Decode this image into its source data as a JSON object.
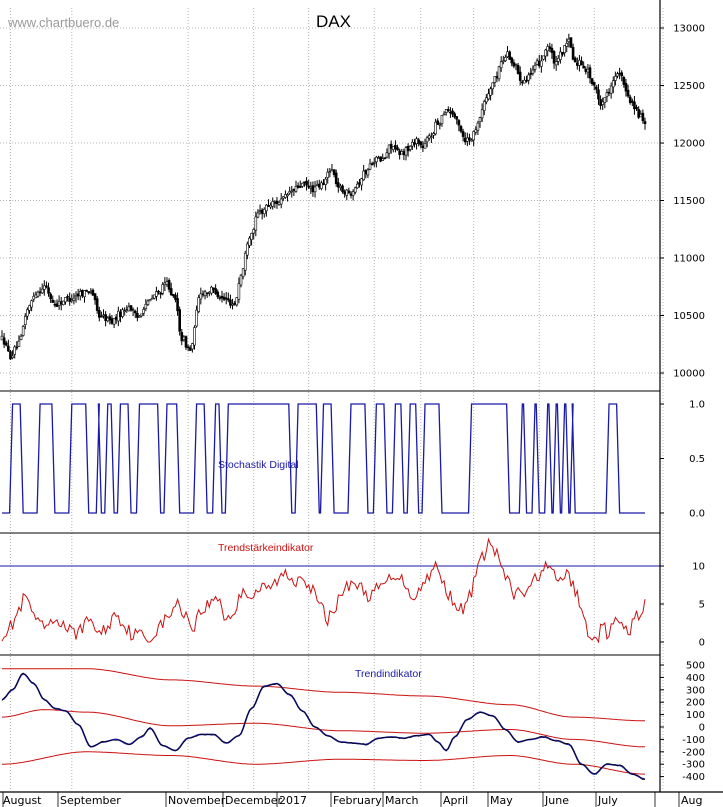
{
  "watermark": "www.chartbuero.de",
  "colors": {
    "grid": "#b4b4b4",
    "price": "#000000",
    "stoch": "#1a1aa8",
    "trend_strength": "#cc1111",
    "trend_ind": "#1a1aa8",
    "trend_band": "#cc1111",
    "trend_black": "#000000",
    "frame": "#000000"
  },
  "chart_data": [
    {
      "type": "candlestick",
      "title": "DAX",
      "ylim": [
        9850,
        13150
      ],
      "yticks": [
        "13000",
        "12500",
        "12000",
        "11500",
        "11000",
        "10500",
        "10000"
      ],
      "months": [
        "August",
        "September",
        "November",
        "December",
        "2017",
        "February",
        "March",
        "April",
        "May",
        "June",
        "July",
        "Aug"
      ],
      "anchors": [
        [
          0,
          10300
        ],
        [
          4,
          10150
        ],
        [
          8,
          10250
        ],
        [
          12,
          10550
        ],
        [
          16,
          10700
        ],
        [
          20,
          10750
        ],
        [
          25,
          10600
        ],
        [
          32,
          10650
        ],
        [
          38,
          10700
        ],
        [
          42,
          10720
        ],
        [
          46,
          10500
        ],
        [
          52,
          10450
        ],
        [
          56,
          10520
        ],
        [
          60,
          10580
        ],
        [
          64,
          10480
        ],
        [
          68,
          10600
        ],
        [
          74,
          10700
        ],
        [
          78,
          10780
        ],
        [
          82,
          10620
        ],
        [
          85,
          10300
        ],
        [
          89,
          10200
        ],
        [
          94,
          10700
        ],
        [
          100,
          10720
        ],
        [
          105,
          10640
        ],
        [
          110,
          10600
        ],
        [
          113,
          10850
        ],
        [
          117,
          11200
        ],
        [
          122,
          11400
        ],
        [
          127,
          11470
        ],
        [
          132,
          11500
        ],
        [
          137,
          11580
        ],
        [
          142,
          11640
        ],
        [
          147,
          11600
        ],
        [
          152,
          11640
        ],
        [
          155,
          11780
        ],
        [
          160,
          11600
        ],
        [
          164,
          11560
        ],
        [
          168,
          11650
        ],
        [
          172,
          11750
        ],
        [
          176,
          11860
        ],
        [
          180,
          11850
        ],
        [
          184,
          11980
        ],
        [
          188,
          11900
        ],
        [
          192,
          11950
        ],
        [
          196,
          12030
        ],
        [
          199,
          11960
        ],
        [
          202,
          12050
        ],
        [
          206,
          12170
        ],
        [
          210,
          12300
        ],
        [
          213,
          12260
        ],
        [
          216,
          12150
        ],
        [
          219,
          12030
        ],
        [
          222,
          12050
        ],
        [
          226,
          12230
        ],
        [
          229,
          12400
        ],
        [
          233,
          12550
        ],
        [
          236,
          12700
        ],
        [
          239,
          12780
        ],
        [
          242,
          12680
        ],
        [
          246,
          12550
        ],
        [
          250,
          12600
        ],
        [
          254,
          12700
        ],
        [
          258,
          12840
        ],
        [
          262,
          12680
        ],
        [
          265,
          12800
        ],
        [
          268,
          12880
        ],
        [
          271,
          12700
        ],
        [
          274,
          12700
        ],
        [
          277,
          12620
        ],
        [
          280,
          12480
        ],
        [
          283,
          12350
        ],
        [
          286,
          12420
        ],
        [
          289,
          12560
        ],
        [
          292,
          12600
        ],
        [
          295,
          12450
        ],
        [
          298,
          12350
        ],
        [
          301,
          12250
        ],
        [
          304,
          12150
        ]
      ],
      "n_bars": 305
    },
    {
      "type": "line",
      "series": [
        {
          "name": "Stochastik Digital"
        }
      ],
      "ylim": [
        0,
        1
      ],
      "yticks": [
        "1.0",
        "0.5",
        "0.0"
      ],
      "segments": [
        [
          1,
          0
        ],
        [
          5,
          1
        ],
        [
          10,
          0
        ],
        [
          18,
          1
        ],
        [
          25,
          0
        ],
        [
          33,
          1
        ],
        [
          41,
          0
        ],
        [
          46,
          1
        ],
        [
          47,
          0
        ],
        [
          50,
          1
        ],
        [
          53,
          0
        ],
        [
          56,
          1
        ],
        [
          61,
          0
        ],
        [
          65,
          1
        ],
        [
          75,
          0
        ],
        [
          78,
          1
        ],
        [
          84,
          0
        ],
        [
          92,
          1
        ],
        [
          97,
          0
        ],
        [
          101,
          1
        ],
        [
          104,
          0
        ],
        [
          107,
          1
        ],
        [
          137,
          0
        ],
        [
          140,
          1
        ],
        [
          150,
          0
        ],
        [
          152,
          1
        ],
        [
          157,
          0
        ],
        [
          165,
          1
        ],
        [
          173,
          0
        ],
        [
          177,
          1
        ],
        [
          182,
          0
        ],
        [
          186,
          1
        ],
        [
          190,
          0
        ],
        [
          193,
          1
        ],
        [
          197,
          0
        ],
        [
          200,
          1
        ],
        [
          208,
          0
        ],
        [
          222,
          1
        ],
        [
          240,
          0
        ],
        [
          246,
          1
        ],
        [
          248,
          0
        ],
        [
          252,
          1
        ],
        [
          254,
          0
        ],
        [
          258,
          1
        ],
        [
          260,
          0
        ],
        [
          262,
          1
        ],
        [
          264,
          0
        ],
        [
          266,
          1
        ],
        [
          268,
          0
        ],
        [
          270,
          1
        ],
        [
          271,
          0
        ],
        [
          287,
          1
        ],
        [
          292,
          0
        ],
        [
          305,
          0
        ]
      ]
    },
    {
      "type": "line",
      "series": [
        {
          "name": "Trendstärkeindikator"
        }
      ],
      "ylim": [
        -1,
        14
      ],
      "yticks": [
        "10",
        "5",
        "0"
      ],
      "reference_line": 10,
      "anchors": [
        [
          0,
          1
        ],
        [
          4,
          2
        ],
        [
          8,
          4
        ],
        [
          11,
          6
        ],
        [
          14,
          4
        ],
        [
          18,
          2
        ],
        [
          22,
          2
        ],
        [
          26,
          3
        ],
        [
          30,
          2
        ],
        [
          34,
          1
        ],
        [
          38,
          2
        ],
        [
          42,
          3
        ],
        [
          46,
          1
        ],
        [
          50,
          2
        ],
        [
          54,
          4
        ],
        [
          58,
          2
        ],
        [
          62,
          1
        ],
        [
          66,
          1
        ],
        [
          70,
          0
        ],
        [
          74,
          2
        ],
        [
          78,
          3
        ],
        [
          82,
          5
        ],
        [
          86,
          4
        ],
        [
          90,
          2
        ],
        [
          94,
          4
        ],
        [
          98,
          5
        ],
        [
          102,
          6
        ],
        [
          106,
          3
        ],
        [
          110,
          4
        ],
        [
          114,
          7
        ],
        [
          118,
          6
        ],
        [
          122,
          7
        ],
        [
          126,
          7
        ],
        [
          130,
          8
        ],
        [
          134,
          9
        ],
        [
          138,
          8
        ],
        [
          142,
          9
        ],
        [
          146,
          7
        ],
        [
          150,
          5
        ],
        [
          154,
          3
        ],
        [
          158,
          5
        ],
        [
          162,
          7
        ],
        [
          166,
          8
        ],
        [
          170,
          7
        ],
        [
          174,
          6
        ],
        [
          178,
          7
        ],
        [
          182,
          8
        ],
        [
          186,
          9
        ],
        [
          190,
          8
        ],
        [
          194,
          6
        ],
        [
          198,
          7
        ],
        [
          202,
          9
        ],
        [
          205,
          10
        ],
        [
          208,
          8
        ],
        [
          212,
          6
        ],
        [
          215,
          5
        ],
        [
          218,
          4
        ],
        [
          221,
          6
        ],
        [
          224,
          9
        ],
        [
          227,
          11
        ],
        [
          230,
          13
        ],
        [
          233,
          12
        ],
        [
          236,
          10
        ],
        [
          239,
          8
        ],
        [
          242,
          6
        ],
        [
          245,
          7
        ],
        [
          248,
          6
        ],
        [
          251,
          8
        ],
        [
          254,
          9
        ],
        [
          257,
          10
        ],
        [
          260,
          9
        ],
        [
          263,
          8
        ],
        [
          266,
          9
        ],
        [
          269,
          8
        ],
        [
          272,
          6
        ],
        [
          275,
          3
        ],
        [
          278,
          1
        ],
        [
          281,
          0
        ],
        [
          284,
          2
        ],
        [
          287,
          1
        ],
        [
          290,
          3
        ],
        [
          293,
          2
        ],
        [
          296,
          1
        ],
        [
          299,
          3
        ],
        [
          302,
          4
        ],
        [
          304,
          5
        ]
      ]
    },
    {
      "type": "line",
      "series": [
        {
          "name": "Trendindikator"
        },
        {
          "name": ""
        },
        {
          "name": ""
        },
        {
          "name": ""
        }
      ],
      "ylim": [
        -470,
        560
      ],
      "yticks": [
        "500",
        "400",
        "300",
        "200",
        "100",
        "0",
        "-100",
        "-200",
        "-300",
        "-400"
      ],
      "trend": [
        [
          0,
          220
        ],
        [
          5,
          300
        ],
        [
          10,
          430
        ],
        [
          15,
          350
        ],
        [
          20,
          220
        ],
        [
          25,
          150
        ],
        [
          30,
          130
        ],
        [
          36,
          20
        ],
        [
          42,
          -160
        ],
        [
          48,
          -120
        ],
        [
          54,
          -100
        ],
        [
          60,
          -140
        ],
        [
          66,
          -80
        ],
        [
          70,
          -10
        ],
        [
          76,
          -150
        ],
        [
          82,
          -190
        ],
        [
          88,
          -90
        ],
        [
          94,
          -60
        ],
        [
          100,
          -60
        ],
        [
          106,
          -130
        ],
        [
          112,
          -70
        ],
        [
          118,
          150
        ],
        [
          124,
          330
        ],
        [
          130,
          350
        ],
        [
          136,
          260
        ],
        [
          142,
          130
        ],
        [
          148,
          0
        ],
        [
          154,
          -70
        ],
        [
          160,
          -120
        ],
        [
          166,
          -130
        ],
        [
          172,
          -140
        ],
        [
          178,
          -90
        ],
        [
          184,
          -80
        ],
        [
          190,
          -90
        ],
        [
          196,
          -70
        ],
        [
          202,
          -60
        ],
        [
          206,
          -120
        ],
        [
          210,
          -190
        ],
        [
          214,
          -80
        ],
        [
          220,
          60
        ],
        [
          226,
          120
        ],
        [
          232,
          90
        ],
        [
          238,
          -20
        ],
        [
          244,
          -120
        ],
        [
          250,
          -100
        ],
        [
          256,
          -80
        ],
        [
          262,
          -110
        ],
        [
          268,
          -140
        ],
        [
          274,
          -300
        ],
        [
          280,
          -380
        ],
        [
          286,
          -300
        ],
        [
          292,
          -310
        ],
        [
          298,
          -380
        ],
        [
          304,
          -420
        ]
      ],
      "upper_band": [
        [
          0,
          470
        ],
        [
          40,
          470
        ],
        [
          80,
          380
        ],
        [
          120,
          330
        ],
        [
          160,
          280
        ],
        [
          200,
          250
        ],
        [
          240,
          180
        ],
        [
          270,
          80
        ],
        [
          304,
          50
        ]
      ],
      "middle_band": [
        [
          0,
          80
        ],
        [
          20,
          140
        ],
        [
          40,
          120
        ],
        [
          80,
          10
        ],
        [
          120,
          30
        ],
        [
          160,
          -30
        ],
        [
          200,
          -50
        ],
        [
          240,
          -20
        ],
        [
          270,
          -100
        ],
        [
          304,
          -160
        ]
      ],
      "lower_band": [
        [
          0,
          -300
        ],
        [
          40,
          -200
        ],
        [
          80,
          -230
        ],
        [
          120,
          -300
        ],
        [
          160,
          -260
        ],
        [
          200,
          -270
        ],
        [
          240,
          -230
        ],
        [
          270,
          -300
        ],
        [
          304,
          -380
        ]
      ]
    }
  ]
}
